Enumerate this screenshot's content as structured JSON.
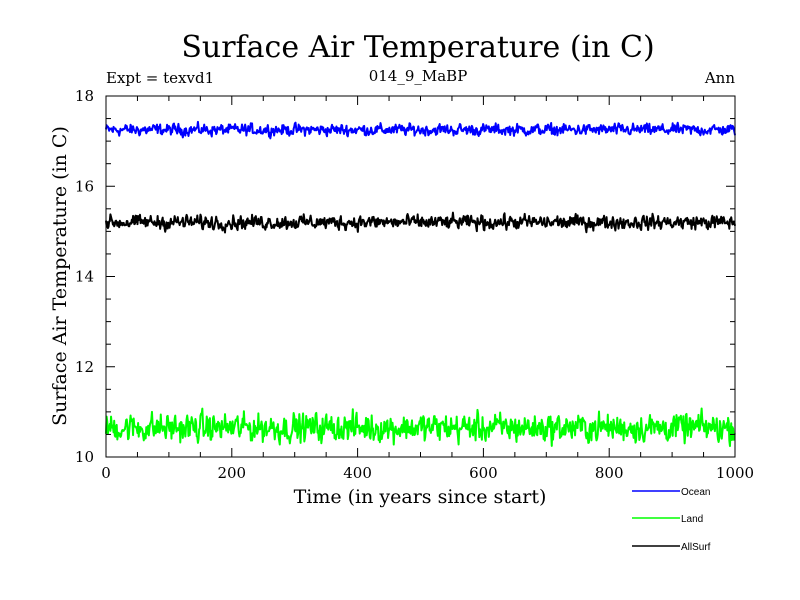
{
  "chart_data": {
    "type": "line",
    "title": "Surface Air Temperature (in C)",
    "subtitle": "014_9_MaBP",
    "annotation_left": "Expt = texvd1",
    "annotation_right": "Ann",
    "xlabel": "Time (in years since start)",
    "ylabel": "Surface Air Temperature (in C)",
    "xlim": [
      0,
      1000
    ],
    "ylim": [
      10,
      18
    ],
    "x_ticks": [
      0,
      200,
      400,
      600,
      800,
      1000
    ],
    "y_ticks": [
      10,
      12,
      14,
      16,
      18
    ],
    "grid": false,
    "legend_position": "bottom-right, outside plot",
    "n_points": 1000,
    "series": [
      {
        "name": "Ocean",
        "color": "#0000ff",
        "mean": 17.25,
        "noise_amplitude": 0.09,
        "max": 17.55,
        "min": 16.95
      },
      {
        "name": "Land",
        "color": "#00ff00",
        "mean": 10.65,
        "noise_amplitude": 0.22,
        "max": 11.3,
        "min": 10.1
      },
      {
        "name": "AllSurf",
        "color": "#000000",
        "mean": 15.2,
        "noise_amplitude": 0.11,
        "max": 15.6,
        "min": 14.85
      }
    ]
  }
}
